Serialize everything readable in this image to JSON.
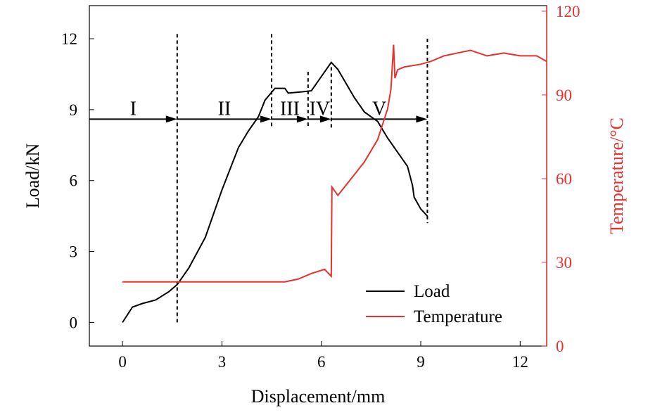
{
  "chart_data": {
    "type": "line",
    "xlabel": "Displacement/mm",
    "ylabel": "Load/kN",
    "y2label": "Temperature/°C",
    "xlim": [
      -1,
      12.8
    ],
    "ylim": [
      -1,
      13.4
    ],
    "y2lim": [
      0,
      122
    ],
    "xticks": [
      0,
      3,
      6,
      9,
      12
    ],
    "yticks": [
      0,
      3,
      6,
      9,
      12
    ],
    "y2ticks": [
      0,
      30,
      60,
      90,
      120
    ],
    "colors": {
      "load": "#000000",
      "temperature": "#e8312f"
    },
    "legend": {
      "position": "bottom-right",
      "entries": [
        "Load",
        "Temperature"
      ]
    },
    "series": [
      {
        "name": "Load",
        "axis": "left",
        "points": [
          [
            0,
            0
          ],
          [
            0.3,
            0.65
          ],
          [
            0.6,
            0.8
          ],
          [
            1.0,
            0.95
          ],
          [
            1.4,
            1.3
          ],
          [
            1.65,
            1.6
          ],
          [
            2.0,
            2.3
          ],
          [
            2.5,
            3.6
          ],
          [
            3.0,
            5.6
          ],
          [
            3.5,
            7.4
          ],
          [
            3.8,
            8.1
          ],
          [
            4.1,
            8.7
          ],
          [
            4.3,
            9.4
          ],
          [
            4.6,
            9.9
          ],
          [
            4.9,
            9.9
          ],
          [
            5.0,
            9.7
          ],
          [
            5.4,
            9.75
          ],
          [
            5.7,
            9.8
          ],
          [
            5.9,
            10.2
          ],
          [
            6.1,
            10.6
          ],
          [
            6.3,
            11.0
          ],
          [
            6.5,
            10.7
          ],
          [
            7.0,
            9.5
          ],
          [
            7.3,
            8.9
          ],
          [
            7.7,
            8.5
          ],
          [
            8.0,
            7.8
          ],
          [
            8.4,
            7.0
          ],
          [
            8.6,
            6.6
          ],
          [
            8.75,
            5.8
          ],
          [
            8.8,
            5.3
          ],
          [
            9.0,
            4.8
          ],
          [
            9.2,
            4.5
          ]
        ]
      },
      {
        "name": "Temperature",
        "axis": "right",
        "points": [
          [
            0,
            23
          ],
          [
            4.9,
            23
          ],
          [
            5.3,
            24
          ],
          [
            5.7,
            26
          ],
          [
            6.1,
            27.5
          ],
          [
            6.3,
            25
          ],
          [
            6.32,
            57
          ],
          [
            6.5,
            54
          ],
          [
            6.9,
            60
          ],
          [
            7.3,
            66
          ],
          [
            7.7,
            74
          ],
          [
            8.0,
            85
          ],
          [
            8.1,
            92
          ],
          [
            8.18,
            108
          ],
          [
            8.22,
            96
          ],
          [
            8.3,
            99
          ],
          [
            8.5,
            100
          ],
          [
            9.0,
            101
          ],
          [
            9.3,
            102
          ],
          [
            9.7,
            104
          ],
          [
            10.1,
            105
          ],
          [
            10.5,
            106
          ],
          [
            11.0,
            104
          ],
          [
            11.5,
            105
          ],
          [
            12.0,
            104
          ],
          [
            12.5,
            104
          ],
          [
            12.8,
            102
          ]
        ]
      }
    ],
    "stages": {
      "boundaries": [
        1.65,
        4.5,
        5.6,
        6.3,
        9.2
      ],
      "labels": [
        "I",
        "II",
        "III",
        "IV",
        "V"
      ],
      "arrow_load": 8.6
    }
  }
}
